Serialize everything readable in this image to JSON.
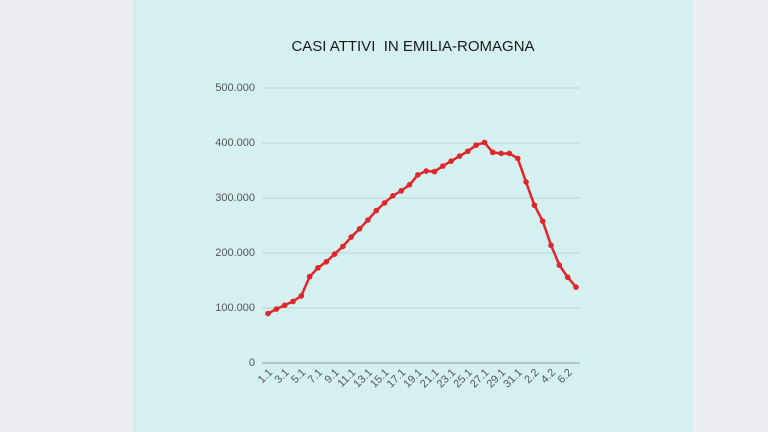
{
  "chart_data": {
    "type": "line",
    "title": "CASI ATTIVI  IN EMILIA-ROMAGNA",
    "categories": [
      "1.1",
      null,
      "3.1",
      null,
      "5.1",
      null,
      "7.1",
      null,
      "9.1",
      null,
      "11.1",
      null,
      "13.1",
      null,
      "15.1",
      null,
      "17.1",
      null,
      "19.1",
      null,
      "21.1",
      null,
      "23.1",
      null,
      "25.1",
      null,
      "27.1",
      null,
      "29.1",
      null,
      "31.1",
      null,
      "2.2",
      null,
      "4.2",
      null,
      "6.2",
      null
    ],
    "series": [
      {
        "color": "#e0262a",
        "values": [
          90000,
          98000,
          105000,
          112000,
          122000,
          157000,
          173000,
          184000,
          198000,
          212000,
          229000,
          244000,
          260000,
          277000,
          291000,
          304000,
          313000,
          324000,
          342000,
          349000,
          348000,
          358000,
          367000,
          376000,
          385000,
          396000,
          401000,
          383000,
          381000,
          381000,
          372000,
          329000,
          287000,
          258000,
          214000,
          178000,
          156000,
          138000
        ]
      }
    ],
    "ylim": [
      0,
      500000
    ],
    "yticks": [
      0,
      {
        "value": 100000,
        "label": "100.000"
      },
      {
        "value": 200000,
        "label": "200.000"
      },
      {
        "value": 300000,
        "label": "300.000"
      },
      {
        "value": 400000,
        "label": "400.000"
      },
      {
        "value": 500000,
        "label": "500.000"
      }
    ],
    "grid": true
  }
}
